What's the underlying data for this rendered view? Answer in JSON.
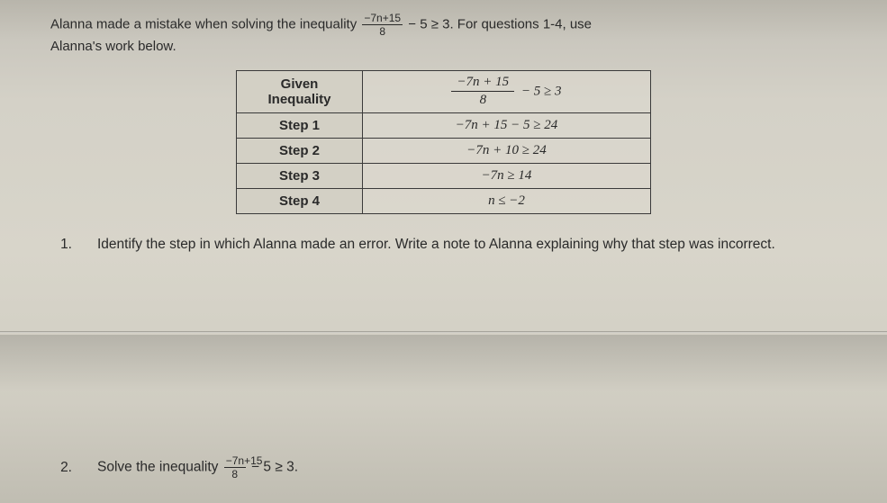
{
  "intro": {
    "line1a": "Alanna made a mistake when solving the inequality ",
    "frac_num": "−7n+15",
    "frac_den": "8",
    "line1b": " − 5 ≥ 3. For questions 1-4, use",
    "line2": "Alanna's work below."
  },
  "table": {
    "rows": [
      {
        "label_l1": "Given",
        "label_l2": "Inequality",
        "frac_num": "−7n + 15",
        "frac_den": "8",
        "tail": " − 5 ≥ 3"
      },
      {
        "label": "Step 1",
        "expr": "−7n + 15 − 5  ≥  24"
      },
      {
        "label": "Step 2",
        "expr": "−7n + 10 ≥ 24"
      },
      {
        "label": "Step 3",
        "expr": "−7n ≥ 14"
      },
      {
        "label": "Step 4",
        "expr": "n ≤ −2"
      }
    ]
  },
  "q1": {
    "num": "1.",
    "text": "Identify the step in which Alanna made an error. Write a note to Alanna explaining why that step was incorrect."
  },
  "q2": {
    "num": "2.",
    "text_a": "Solve the inequality ",
    "frac_num": "−7n+15",
    "frac_den": "8",
    "text_b": " − 5 ≥ 3."
  }
}
